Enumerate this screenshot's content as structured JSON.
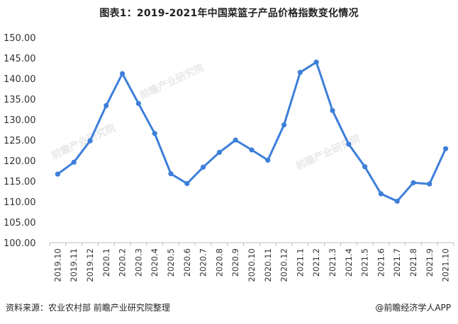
{
  "header": {
    "title": "图表1：2019-2021年中国菜篮子产品价格指数变化情况"
  },
  "footer": {
    "source": "资料来源：农业农村部 前瞻产业研究院整理",
    "brand": "@前瞻经济学人APP"
  },
  "watermark": {
    "text": "前瞻产业研究院"
  },
  "chart_data": {
    "type": "line",
    "title": "图表1：2019-2021年中国菜篮子产品价格指数变化情况",
    "xlabel": "",
    "ylabel": "",
    "ylim": [
      100,
      150
    ],
    "yticks": [
      "100.00",
      "105.00",
      "110.00",
      "115.00",
      "120.00",
      "125.00",
      "130.00",
      "135.00",
      "140.00",
      "145.00",
      "150.00"
    ],
    "categories": [
      "2019.10",
      "2019.11",
      "2019.12",
      "2020.1",
      "2020.2",
      "2020.3",
      "2020.4",
      "2020.5",
      "2020.6",
      "2020.7",
      "2020.8",
      "2020.9",
      "2020.10",
      "2020.11",
      "2020.12",
      "2021.1",
      "2021.2",
      "2021.3",
      "2021.4",
      "2021.5",
      "2021.6",
      "2021.7",
      "2021.8",
      "2021.9",
      "2021.10"
    ],
    "series": [
      {
        "values": [
          116.7,
          119.6,
          124.8,
          133.4,
          141.2,
          133.9,
          126.6,
          116.8,
          114.4,
          118.4,
          122.0,
          125.0,
          122.6,
          120.1,
          128.7,
          141.5,
          144.0,
          132.2,
          124.0,
          118.5,
          111.9,
          110.1,
          114.6,
          114.3,
          122.9
        ]
      }
    ],
    "colors": {
      "line": "#3d7fd9",
      "axis": "#bfbfbf"
    },
    "grid": false,
    "legend": "none"
  }
}
